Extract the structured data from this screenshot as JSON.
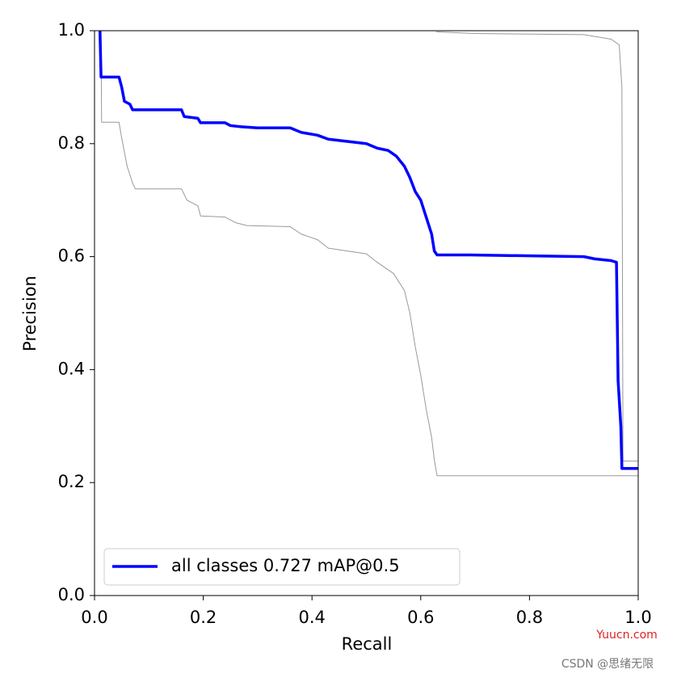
{
  "chart_data": {
    "type": "line",
    "xlabel": "Recall",
    "ylabel": "Precision",
    "xlim": [
      0,
      1
    ],
    "ylim": [
      0,
      1
    ],
    "xticks": [
      {
        "value": 0,
        "label": "0.0"
      },
      0.2,
      0.4,
      0.6,
      0.8,
      {
        "value": 1,
        "label": "1.0"
      }
    ],
    "yticks": [
      {
        "value": 0,
        "label": "0.0"
      },
      0.2,
      0.4,
      0.6,
      0.8,
      {
        "value": 1,
        "label": "1.0"
      }
    ],
    "legend": "lower left",
    "series": [
      {
        "color": "#999999",
        "x": [
          0.012,
          0.013,
          0.045,
          0.05,
          0.06,
          0.07,
          0.075,
          0.16,
          0.17,
          0.19,
          0.195,
          0.24,
          0.26,
          0.28,
          0.36,
          0.38,
          0.41,
          0.43,
          0.5,
          0.52,
          0.55,
          0.57,
          0.58,
          0.59,
          0.6,
          0.61,
          0.62,
          0.625,
          0.63,
          1.0
        ],
        "values": [
          1.0,
          0.838,
          0.838,
          0.81,
          0.76,
          0.73,
          0.72,
          0.72,
          0.7,
          0.69,
          0.672,
          0.67,
          0.66,
          0.655,
          0.653,
          0.64,
          0.63,
          0.615,
          0.605,
          0.59,
          0.57,
          0.54,
          0.5,
          0.44,
          0.39,
          0.33,
          0.28,
          0.24,
          0.212,
          0.212
        ]
      },
      {
        "color": "#999999",
        "x": [
          0.628,
          0.7,
          0.9,
          0.95,
          0.965,
          0.97,
          0.972,
          1.0
        ],
        "values": [
          0.998,
          0.995,
          0.993,
          0.985,
          0.975,
          0.9,
          0.238,
          0.238
        ]
      },
      {
        "name": "all classes 0.727 mAP@0.5",
        "color": "#0000ff",
        "x": [
          0.01,
          0.012,
          0.045,
          0.05,
          0.055,
          0.065,
          0.07,
          0.16,
          0.165,
          0.19,
          0.195,
          0.24,
          0.25,
          0.27,
          0.3,
          0.36,
          0.38,
          0.41,
          0.43,
          0.5,
          0.52,
          0.54,
          0.555,
          0.57,
          0.58,
          0.59,
          0.6,
          0.61,
          0.62,
          0.625,
          0.63,
          0.69,
          0.9,
          0.92,
          0.95,
          0.96,
          0.963,
          0.968,
          0.97,
          1.0
        ],
        "values": [
          1.0,
          0.918,
          0.918,
          0.9,
          0.875,
          0.87,
          0.86,
          0.86,
          0.848,
          0.845,
          0.837,
          0.837,
          0.832,
          0.83,
          0.828,
          0.828,
          0.82,
          0.815,
          0.808,
          0.8,
          0.792,
          0.788,
          0.778,
          0.76,
          0.74,
          0.715,
          0.7,
          0.67,
          0.64,
          0.61,
          0.603,
          0.603,
          0.6,
          0.596,
          0.593,
          0.59,
          0.38,
          0.3,
          0.225,
          0.225
        ]
      }
    ],
    "annotations": [
      "Yuucn.com",
      "CSDN @思绪无限"
    ]
  }
}
